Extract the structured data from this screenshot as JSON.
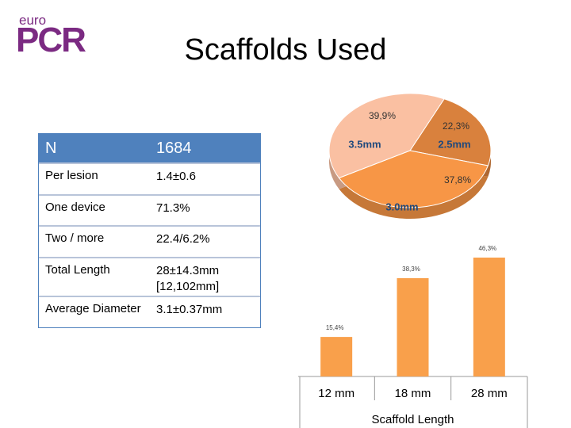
{
  "logo": {
    "top": "euro",
    "main": "PCR"
  },
  "title": "Scaffolds Used",
  "table": {
    "header": [
      "N",
      "1684"
    ],
    "rows": [
      [
        "Per lesion",
        "1.4±0.6"
      ],
      [
        "One device",
        "71.3%"
      ],
      [
        "Two / more",
        "22.4/6.2%"
      ],
      [
        "Total Length",
        [
          "28±14.3mm",
          "[12,102mm]"
        ]
      ],
      [
        "Average Diameter",
        "3.1±0.37mm"
      ]
    ]
  },
  "chart_data": [
    {
      "type": "pie",
      "categories": [
        "2.5mm",
        "3.0mm",
        "3.5mm"
      ],
      "values": [
        22.3,
        37.8,
        39.9
      ],
      "value_labels": [
        "22,3%",
        "37,8%",
        "39,9%"
      ],
      "colors": [
        "#d9813d",
        "#f79646",
        "#fac0a2"
      ]
    },
    {
      "type": "bar",
      "categories": [
        "12 mm",
        "18 mm",
        "28 mm"
      ],
      "values": [
        15.4,
        38.3,
        46.3
      ],
      "value_labels": [
        "15,4%",
        "38,3%",
        "46,3%"
      ],
      "color": "#f9a04b",
      "xlabel": "Scaffold Length"
    }
  ]
}
